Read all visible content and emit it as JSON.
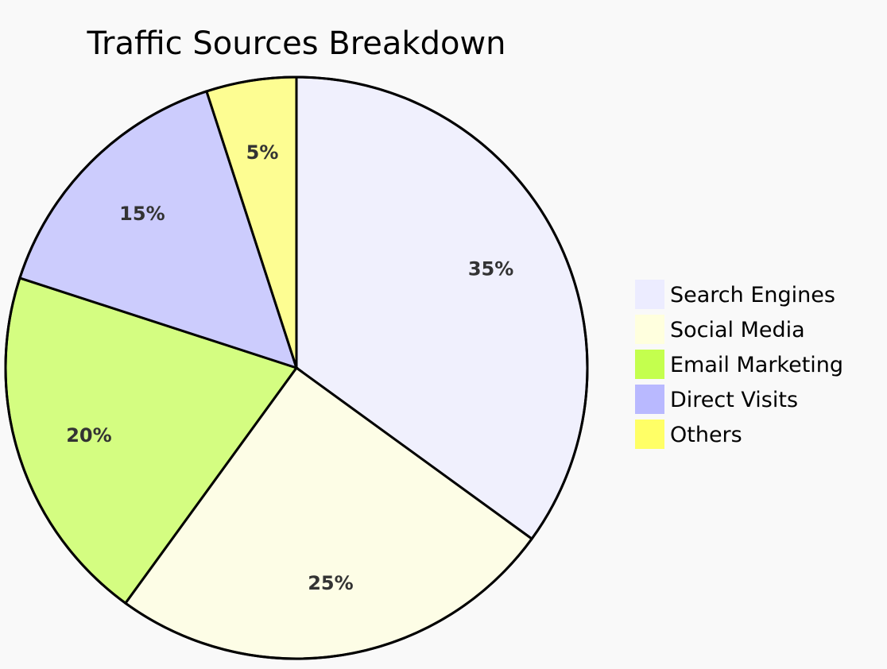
{
  "chart_data": {
    "type": "pie",
    "title": "Traffic Sources Breakdown",
    "categories": [
      "Search Engines",
      "Social Media",
      "Email Marketing",
      "Direct Visits",
      "Others"
    ],
    "values": [
      35,
      25,
      20,
      15,
      5
    ],
    "labels": [
      "35%",
      "25%",
      "20%",
      "15%",
      "5%"
    ],
    "colors": [
      "#ECECFF",
      "#FFFFDE",
      "#C4FF4E",
      "#B9B9FF",
      "#FFFF66"
    ],
    "legend_position": "right"
  }
}
